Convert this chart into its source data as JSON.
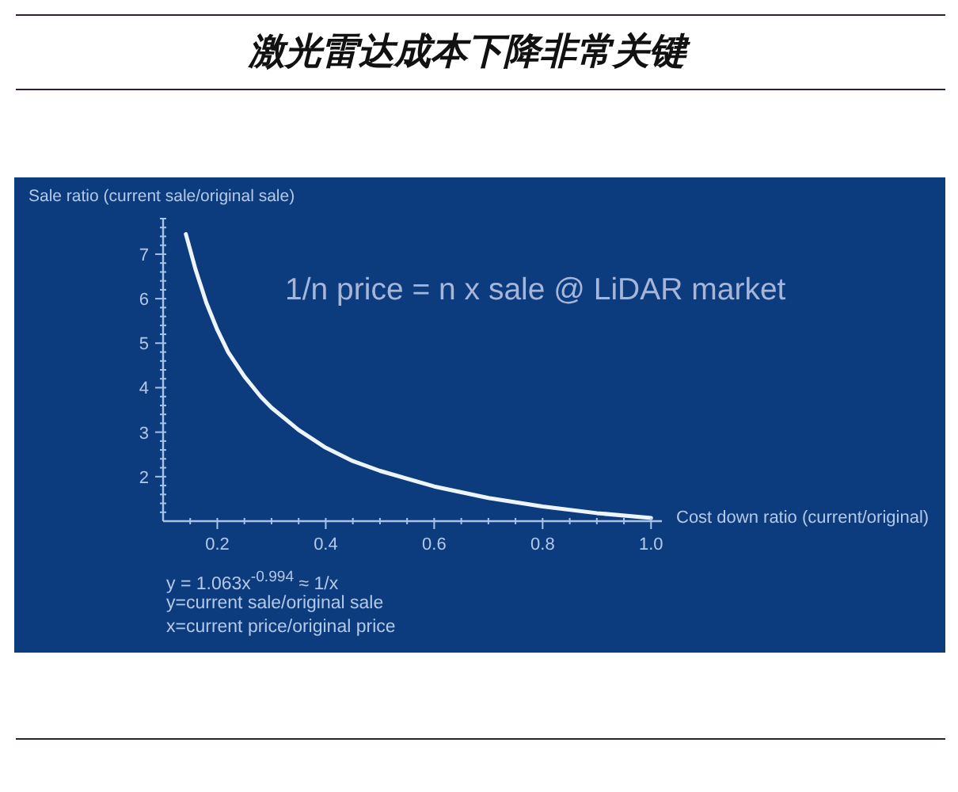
{
  "chart_data": {
    "type": "line",
    "title": "激光雷达成本下降非常关键",
    "xlabel": "Cost down ratio (current/original)",
    "ylabel": "Sale ratio (current sale/original sale)",
    "annotations": [
      "1/n price = n x sale @ LiDAR market",
      "y = 1.063x$^{-0.994}$ ≈ 1/x",
      "y=current sale/original sale",
      "x=current price/original price"
    ],
    "x": [
      0.142,
      0.16,
      0.18,
      0.2,
      0.22,
      0.25,
      0.28,
      0.3,
      0.35,
      0.4,
      0.45,
      0.5,
      0.6,
      0.7,
      0.8,
      0.9,
      1.0
    ],
    "series": [
      {
        "color": "#eef4fb",
        "values": [
          7.45,
          6.65,
          5.9,
          5.3,
          4.8,
          4.25,
          3.8,
          3.55,
          3.05,
          2.65,
          2.35,
          2.13,
          1.78,
          1.52,
          1.33,
          1.18,
          1.07
        ]
      }
    ],
    "xlim": [
      0.1,
      1.02
    ],
    "xticks": [
      {
        "value": 0.15,
        "label": null
      },
      0.2,
      {
        "value": 0.25,
        "label": null
      },
      {
        "value": 0.3,
        "label": null
      },
      {
        "value": 0.35,
        "label": null
      },
      0.4,
      {
        "value": 0.45,
        "label": null
      },
      {
        "value": 0.5,
        "label": null
      },
      {
        "value": 0.55,
        "label": null
      },
      0.6,
      {
        "value": 0.65,
        "label": null
      },
      {
        "value": 0.7,
        "label": null
      },
      {
        "value": 0.75,
        "label": null
      },
      0.8,
      {
        "value": 0.85,
        "label": null
      },
      {
        "value": 0.9,
        "label": null
      },
      {
        "value": 0.95,
        "label": null
      },
      {
        "value": 1,
        "label": "1.0"
      }
    ],
    "ylim": [
      1,
      7.8
    ],
    "yticks": [
      {
        "value": 1.2,
        "label": null
      },
      {
        "value": 1.4,
        "label": null
      },
      {
        "value": 1.6,
        "label": null
      },
      {
        "value": 1.8,
        "label": null
      },
      2,
      {
        "value": 2.2,
        "label": null
      },
      {
        "value": 2.4,
        "label": null
      },
      {
        "value": 2.6,
        "label": null
      },
      {
        "value": 2.8,
        "label": null
      },
      3,
      {
        "value": 3.2,
        "label": null
      },
      {
        "value": 3.4,
        "label": null
      },
      {
        "value": 3.6,
        "label": null
      },
      {
        "value": 3.8,
        "label": null
      },
      4,
      {
        "value": 4.2,
        "label": null
      },
      {
        "value": 4.4,
        "label": null
      },
      {
        "value": 4.6,
        "label": null
      },
      {
        "value": 4.8,
        "label": null
      },
      5,
      {
        "value": 5.2,
        "label": null
      },
      {
        "value": 5.4,
        "label": null
      },
      {
        "value": 5.6,
        "label": null
      },
      {
        "value": 5.8,
        "label": null
      },
      6,
      {
        "value": 6.2,
        "label": null
      },
      {
        "value": 6.4,
        "label": null
      },
      {
        "value": 6.6,
        "label": null
      },
      {
        "value": 6.8,
        "label": null
      },
      7,
      {
        "value": 7.2,
        "label": null
      },
      {
        "value": 7.4,
        "label": null
      },
      {
        "value": 7.6,
        "label": null
      },
      {
        "value": 7.8,
        "label": null
      }
    ],
    "line_style": "solid"
  }
}
